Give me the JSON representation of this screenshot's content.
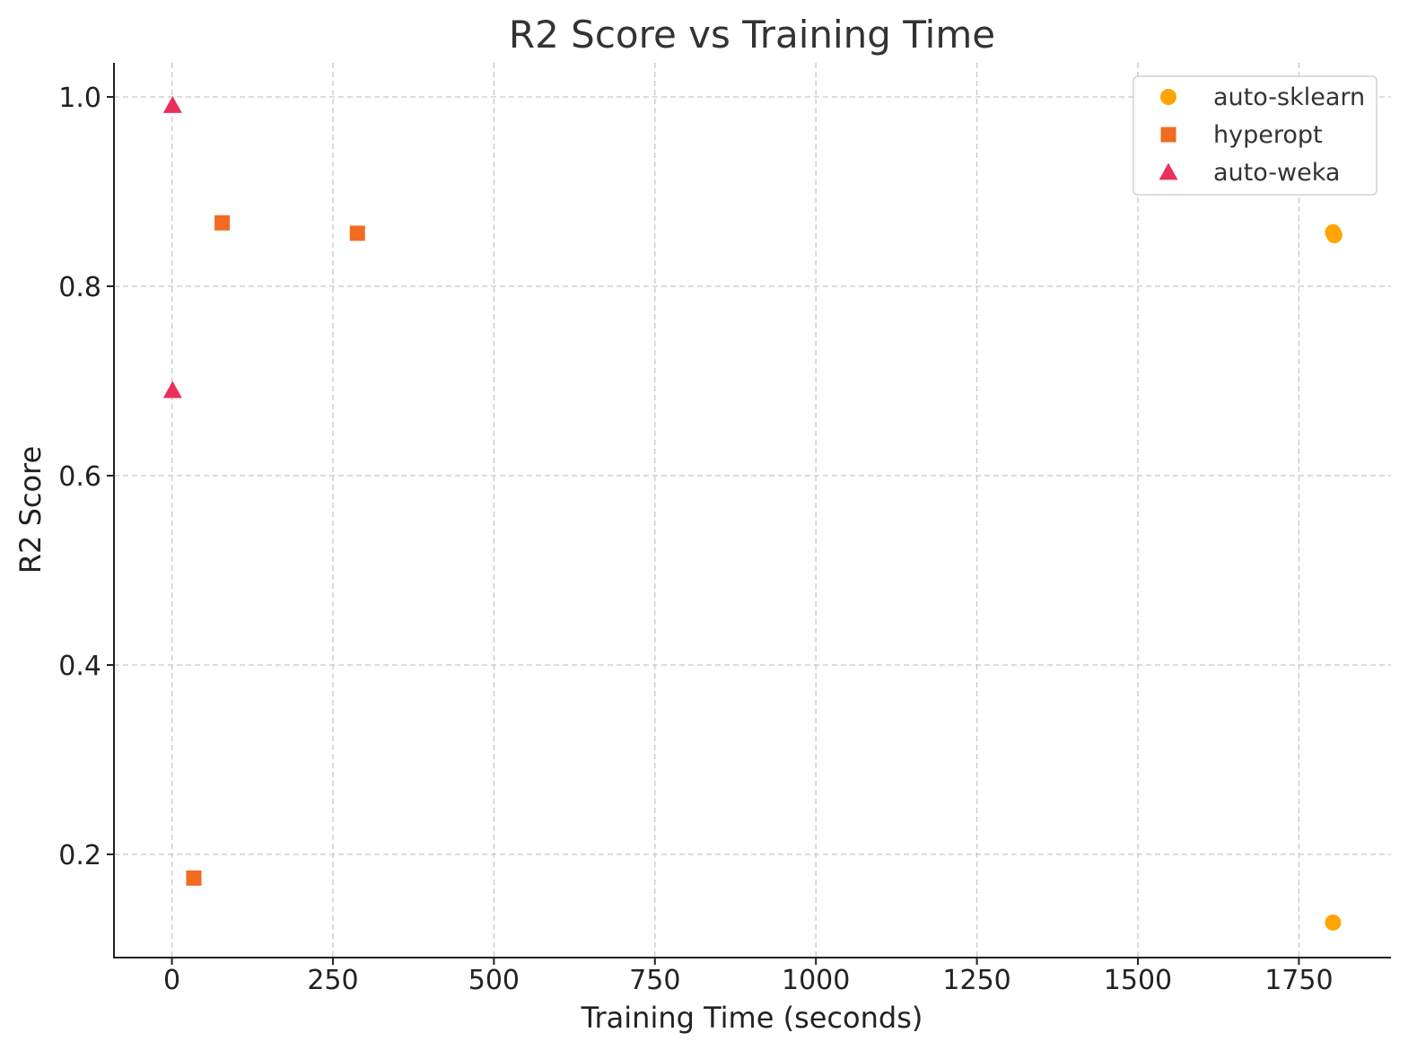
{
  "chart_data": {
    "type": "scatter",
    "title": "R2 Score vs Training Time",
    "xlabel": "Training Time (seconds)",
    "ylabel": "R2 Score",
    "xlim": [
      -90,
      1893
    ],
    "ylim": [
      0.091,
      1.036
    ],
    "xticks": [
      0,
      250,
      500,
      750,
      1000,
      1250,
      1500,
      1750
    ],
    "yticks": [
      0.2,
      0.4,
      0.6,
      0.8,
      1.0
    ],
    "grid": true,
    "legend_position": "top-right",
    "series": [
      {
        "name": "auto-sklearn",
        "marker": "circle",
        "color": "#FFA500",
        "points": [
          {
            "x": 1803,
            "y": 0.857
          },
          {
            "x": 1805,
            "y": 0.854
          },
          {
            "x": 1803,
            "y": 0.128
          }
        ]
      },
      {
        "name": "hyperopt",
        "marker": "square",
        "color": "#F26B21",
        "points": [
          {
            "x": 78,
            "y": 0.867
          },
          {
            "x": 288,
            "y": 0.856
          },
          {
            "x": 34,
            "y": 0.175
          }
        ]
      },
      {
        "name": "auto-weka",
        "marker": "triangle",
        "color": "#E8305A",
        "points": [
          {
            "x": 1,
            "y": 0.991
          },
          {
            "x": 1,
            "y": 0.69
          }
        ]
      }
    ]
  }
}
